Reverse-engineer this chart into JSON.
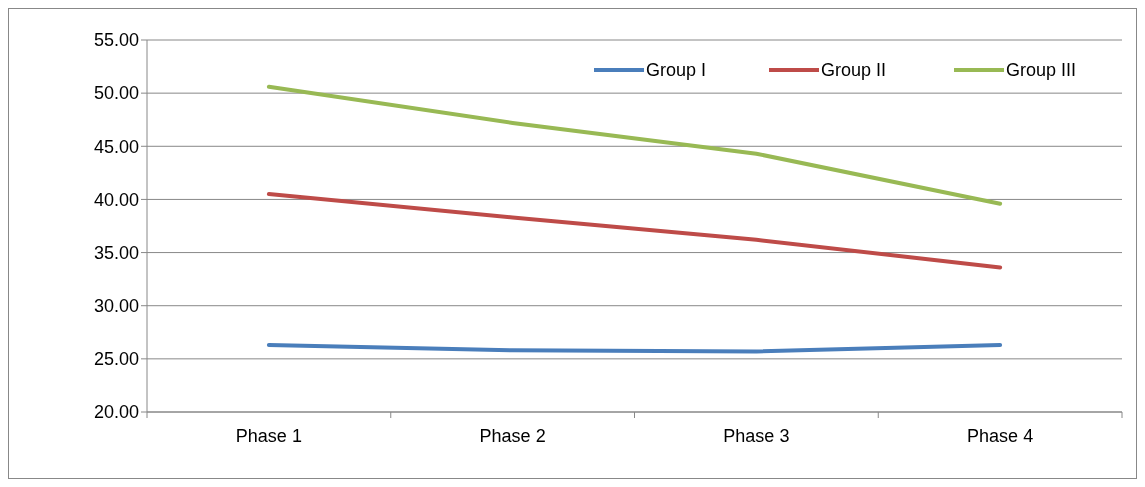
{
  "chart_data": {
    "type": "line",
    "categories": [
      "Phase 1",
      "Phase 2",
      "Phase 3",
      "Phase 4"
    ],
    "series": [
      {
        "name": "Group I",
        "color": "#4a7ebb",
        "values": [
          26.3,
          25.8,
          25.7,
          26.3
        ]
      },
      {
        "name": "Group II",
        "color": "#be4b48",
        "values": [
          40.5,
          38.3,
          36.2,
          33.6
        ]
      },
      {
        "name": "Group III",
        "color": "#98b954",
        "values": [
          50.6,
          47.2,
          44.3,
          39.6
        ]
      }
    ],
    "ylim": [
      20,
      55
    ],
    "yticks": [
      {
        "value": 20,
        "label": "20.00"
      },
      {
        "value": 25,
        "label": "25.00"
      },
      {
        "value": 30,
        "label": "30.00"
      },
      {
        "value": 35,
        "label": "35.00"
      },
      {
        "value": 40,
        "label": "40.00"
      },
      {
        "value": 45,
        "label": "45.00"
      },
      {
        "value": 50,
        "label": "50.00"
      },
      {
        "value": 55,
        "label": "55.00"
      }
    ],
    "grid": "y",
    "legend": "top right",
    "marker": "none",
    "line_style": "solid"
  }
}
